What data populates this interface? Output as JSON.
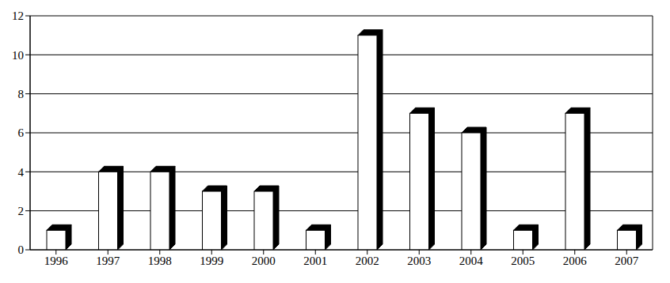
{
  "chart_data": {
    "type": "bar",
    "categories": [
      "1996",
      "1997",
      "1998",
      "1999",
      "2000",
      "2001",
      "2002",
      "2003",
      "2004",
      "2005",
      "2006",
      "2007"
    ],
    "values": [
      1,
      4,
      4,
      3,
      3,
      1,
      11,
      7,
      6,
      1,
      7,
      1
    ],
    "color": "#ffffff",
    "ylim": [
      0,
      12
    ],
    "yticks": [
      0,
      2,
      4,
      6,
      8,
      10,
      12
    ],
    "grid": true
  }
}
